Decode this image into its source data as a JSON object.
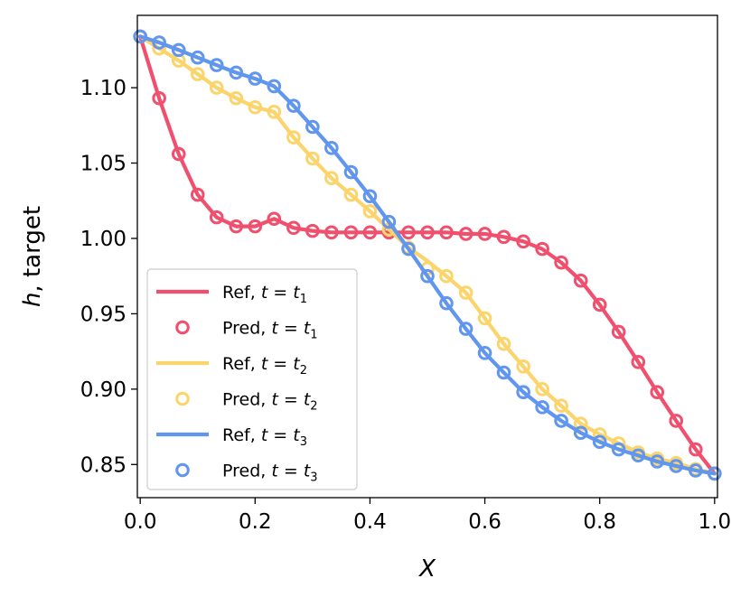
{
  "chart_data": {
    "type": "line",
    "xlabel": "X",
    "ylabel": "h, target",
    "xlim": [
      -0.005,
      1.005
    ],
    "ylim": [
      0.828,
      1.148
    ],
    "x_ticks": [
      "0.0",
      "0.2",
      "0.4",
      "0.6",
      "0.8",
      "1.0"
    ],
    "y_ticks": [
      "0.85",
      "0.90",
      "0.95",
      "1.00",
      "1.05",
      "1.10"
    ],
    "grid": false,
    "legend_position": "lower-left",
    "colors": {
      "t1": "#f0506e",
      "t2": "#fcd46c",
      "t3": "#6196ee"
    },
    "series": [
      {
        "name": "Ref, t = t1",
        "legend_main": "Ref, ",
        "legend_sub": "1",
        "kind": "line",
        "color": "#f0506e",
        "x": [
          0.0,
          0.033,
          0.067,
          0.1,
          0.133,
          0.167,
          0.2,
          0.233,
          0.267,
          0.3,
          0.333,
          0.367,
          0.4,
          0.433,
          0.467,
          0.5,
          0.533,
          0.567,
          0.6,
          0.633,
          0.667,
          0.7,
          0.733,
          0.767,
          0.8,
          0.833,
          0.867,
          0.9,
          0.933,
          0.967,
          1.0
        ],
        "y": [
          1.134,
          1.093,
          1.056,
          1.029,
          1.014,
          1.008,
          1.008,
          1.013,
          1.007,
          1.005,
          1.004,
          1.004,
          1.004,
          1.004,
          1.004,
          1.004,
          1.004,
          1.003,
          1.003,
          1.001,
          0.998,
          0.993,
          0.984,
          0.972,
          0.956,
          0.938,
          0.918,
          0.898,
          0.879,
          0.86,
          0.844
        ]
      },
      {
        "name": "Pred, t = t1",
        "legend_main": "Pred, ",
        "legend_sub": "1",
        "kind": "marker",
        "color": "#f0506e",
        "x": [
          0.0,
          0.033,
          0.067,
          0.1,
          0.133,
          0.167,
          0.2,
          0.233,
          0.267,
          0.3,
          0.333,
          0.367,
          0.4,
          0.433,
          0.467,
          0.5,
          0.533,
          0.567,
          0.6,
          0.633,
          0.667,
          0.7,
          0.733,
          0.767,
          0.8,
          0.833,
          0.867,
          0.9,
          0.933,
          0.967,
          1.0
        ],
        "y": [
          1.134,
          1.093,
          1.056,
          1.029,
          1.014,
          1.008,
          1.008,
          1.013,
          1.007,
          1.005,
          1.004,
          1.004,
          1.004,
          1.004,
          1.004,
          1.004,
          1.004,
          1.003,
          1.003,
          1.001,
          0.998,
          0.993,
          0.984,
          0.972,
          0.956,
          0.938,
          0.918,
          0.898,
          0.879,
          0.86,
          0.844
        ]
      },
      {
        "name": "Ref, t = t2",
        "legend_main": "Ref, ",
        "legend_sub": "2",
        "kind": "line",
        "color": "#fcd46c",
        "x": [
          0.0,
          0.033,
          0.067,
          0.1,
          0.133,
          0.167,
          0.2,
          0.233,
          0.267,
          0.3,
          0.333,
          0.367,
          0.4,
          0.433,
          0.467,
          0.5,
          0.533,
          0.567,
          0.6,
          0.633,
          0.667,
          0.7,
          0.733,
          0.767,
          0.8,
          0.833,
          0.867,
          0.9,
          0.933,
          0.967,
          1.0
        ],
        "y": [
          1.134,
          1.126,
          1.118,
          1.109,
          1.1,
          1.093,
          1.087,
          1.084,
          1.067,
          1.053,
          1.04,
          1.029,
          1.018,
          1.006,
          0.994,
          0.985,
          0.975,
          0.964,
          0.947,
          0.93,
          0.915,
          0.9,
          0.889,
          0.877,
          0.87,
          0.864,
          0.858,
          0.854,
          0.851,
          0.847,
          0.844
        ]
      },
      {
        "name": "Pred, t = t2",
        "legend_main": "Pred, ",
        "legend_sub": "2",
        "kind": "marker",
        "color": "#fcd46c",
        "x": [
          0.0,
          0.033,
          0.067,
          0.1,
          0.133,
          0.167,
          0.2,
          0.233,
          0.267,
          0.3,
          0.333,
          0.367,
          0.4,
          0.433,
          0.467,
          0.5,
          0.533,
          0.567,
          0.6,
          0.633,
          0.667,
          0.7,
          0.733,
          0.767,
          0.8,
          0.833,
          0.867,
          0.9,
          0.933,
          0.967,
          1.0
        ],
        "y": [
          1.134,
          1.126,
          1.118,
          1.109,
          1.1,
          1.093,
          1.087,
          1.084,
          1.067,
          1.053,
          1.04,
          1.029,
          1.018,
          1.006,
          0.994,
          0.98,
          0.975,
          0.964,
          0.947,
          0.93,
          0.915,
          0.9,
          0.889,
          0.877,
          0.87,
          0.864,
          0.858,
          0.854,
          0.851,
          0.847,
          0.844
        ]
      },
      {
        "name": "Ref, t = t3",
        "legend_main": "Ref, ",
        "legend_sub": "3",
        "kind": "line",
        "color": "#6196ee",
        "x": [
          0.0,
          0.033,
          0.067,
          0.1,
          0.133,
          0.167,
          0.2,
          0.233,
          0.267,
          0.3,
          0.333,
          0.367,
          0.4,
          0.433,
          0.467,
          0.5,
          0.533,
          0.567,
          0.6,
          0.633,
          0.667,
          0.7,
          0.733,
          0.767,
          0.8,
          0.833,
          0.867,
          0.9,
          0.933,
          0.967,
          1.0
        ],
        "y": [
          1.134,
          1.13,
          1.125,
          1.12,
          1.115,
          1.11,
          1.106,
          1.101,
          1.088,
          1.074,
          1.06,
          1.044,
          1.028,
          1.011,
          0.993,
          0.975,
          0.957,
          0.94,
          0.924,
          0.911,
          0.898,
          0.888,
          0.879,
          0.871,
          0.865,
          0.86,
          0.856,
          0.852,
          0.849,
          0.846,
          0.844
        ]
      },
      {
        "name": "Pred, t = t3",
        "legend_main": "Pred, ",
        "legend_sub": "3",
        "kind": "marker",
        "color": "#6196ee",
        "x": [
          0.0,
          0.033,
          0.067,
          0.1,
          0.133,
          0.167,
          0.2,
          0.233,
          0.267,
          0.3,
          0.333,
          0.367,
          0.4,
          0.433,
          0.467,
          0.5,
          0.533,
          0.567,
          0.6,
          0.633,
          0.667,
          0.7,
          0.733,
          0.767,
          0.8,
          0.833,
          0.867,
          0.9,
          0.933,
          0.967,
          1.0
        ],
        "y": [
          1.134,
          1.13,
          1.125,
          1.12,
          1.115,
          1.11,
          1.106,
          1.101,
          1.088,
          1.074,
          1.06,
          1.044,
          1.028,
          1.011,
          0.993,
          0.975,
          0.957,
          0.94,
          0.924,
          0.911,
          0.898,
          0.888,
          0.879,
          0.871,
          0.865,
          0.86,
          0.856,
          0.852,
          0.849,
          0.846,
          0.844
        ]
      }
    ]
  }
}
